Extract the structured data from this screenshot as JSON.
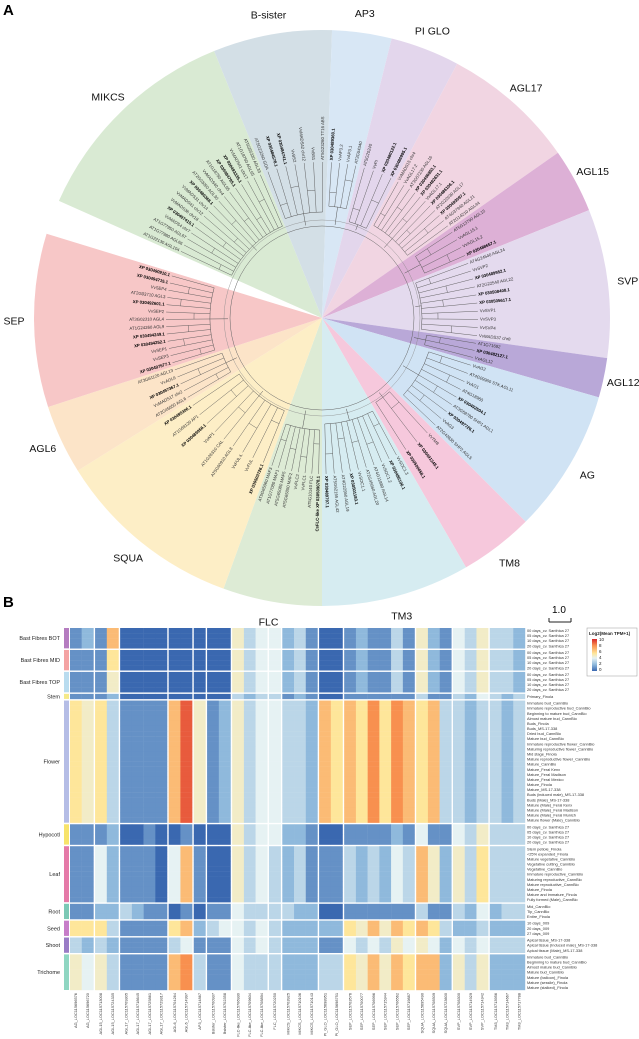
{
  "panel_a": {
    "label": "A",
    "scale_bar_label": "1.0",
    "clades": [
      {
        "name": "MIKCS",
        "color": "#d9ead3",
        "start": -66,
        "end": -22,
        "tips": [
          "AT1G22130 AGL104",
          "AT1G77980 AGL66",
          "AT1G77950 AGL67",
          "VvMADS4 chr7",
          "XP 030497415.1",
          "VvMADS36 chr18",
          "VvMADS41 chr12",
          "VvMADS31 chr14",
          "XP 030480368.1",
          "AT2G03060 AGL30",
          "VvMADS40 chr4",
          "AT1G18750 AGL65",
          "XP 030484795.1",
          "XP 030493335.1",
          "VvMADS41 chr17",
          "AT1G18750 AGL65",
          "AT5G65330 AGL33"
        ]
      },
      {
        "name": "B-sister",
        "color": "#d3dfe6",
        "start": -22,
        "end": 2,
        "tips": [
          "AT5G23260 GOA",
          "XP 030484578.1",
          "XP 030484741.1",
          "VvBS2",
          "VvMADS42 chr12",
          "VvBS1",
          "AT5G23260 TT16 ABS"
        ]
      },
      {
        "name": "AP3",
        "color": "#d8e7f5",
        "start": 2,
        "end": 14,
        "tips": [
          "XP 030489360.1",
          "VvAP3.2",
          "VvAP3.1",
          "AT3G54340"
        ]
      },
      {
        "name": "PI GLO",
        "color": "#e3d6ec",
        "start": 14,
        "end": 28,
        "tips": [
          "AT5G20240",
          "VvPI",
          "XP 030480122.1",
          "XP 030486995.1"
        ]
      },
      {
        "name": "AGL17",
        "color": "#f1d5e2",
        "start": 28,
        "end": 55,
        "tips": [
          "VvMADS15 chr4",
          "VvAGL17.2",
          "AT3G57230 AGL16",
          "XP 030496853.1",
          "XP 030482631.1",
          "VvAGL17.1",
          "XP 030486106.1",
          "AT2G22630 AGL17",
          "XP 030493097.1",
          "AT4G37940 AGL21",
          "AT2G14210 AGL44"
        ]
      },
      {
        "name": "AGL15",
        "color": "#ddb0d6",
        "start": 55,
        "end": 68,
        "tips": [
          "AT5G13790 AGL15",
          "VvAGL15.1",
          "VvAGL15.2",
          "XP 030488657.1"
        ]
      },
      {
        "name": "SVP",
        "color": "#e4daee",
        "start": 68,
        "end": 98,
        "tips": [
          "AT4G24540 AGL24",
          "VvSVP2",
          "XP 030489952.1",
          "AT2G22540 AGL22",
          "XP 030508408.1",
          "XP 030505617.1",
          "VvSVP1",
          "VvSVP3",
          "VvSVP4",
          "VvMADS37 chr8"
        ]
      },
      {
        "name": "AGL12",
        "color": "#b9a8d8",
        "start": 98,
        "end": 106,
        "tips": [
          "AT1G71692",
          "XP 030482127.1",
          "VvAGL12"
        ]
      },
      {
        "name": "AG",
        "color": "#d0e3f4",
        "start": 106,
        "end": 135,
        "tips": [
          "VvAG2",
          "AT4G09960 STK AGL11",
          "VvAG1",
          "AT4G18960",
          "XP 030492504.1",
          "AT3G58780 SHP1 AGL1",
          "XP 030497726.1",
          "VvAG3",
          "AT2G42830 SHP2 AGL5"
        ]
      },
      {
        "name": "TM8",
        "color": "#f6c8dc",
        "start": 135,
        "end": 150,
        "tips": [
          "VvTM8",
          "XP 030491248.1",
          "XP 030500658.1"
        ]
      },
      {
        "name": "TM3",
        "color": "#d6ecf1",
        "start": 150,
        "end": 180,
        "tips": [
          "VvSOC1.3",
          "XP 030486106.1",
          "VvSOC1.2",
          "AT4G11880 AGL14",
          "AT2G45660 AGL20",
          "VvSOC1.1",
          "XP 030501183.1",
          "AT4G22950 AGL19",
          "AT5G62165 AGL42",
          "XP 030489797.1"
        ]
      },
      {
        "name": "FLC",
        "color": "#ddebd5",
        "start": 180,
        "end": 200,
        "tips": [
          "CsFLC-like XP 030509078.1",
          "AT5G10140 FLC",
          "VvFLC1",
          "VvFLC2",
          "AT5G65050 MAF2",
          "AT5G65080 MAF5",
          "AT1G77080 MAF1",
          "AT5G65060 MAF3"
        ]
      },
      {
        "name": "SQUA",
        "color": "#fdeec6",
        "start": 200,
        "end": 238,
        "tips": [
          "XP 030503726.1",
          "VvFUL",
          "VvFUL-L",
          "AT5G60910 AGL8",
          "AT1G26310 CAL",
          "VvAP1",
          "XP 030489956.1",
          "AT1G69120 AP1",
          "XP 030495306.1"
        ]
      },
      {
        "name": "AGL6",
        "color": "#fce4c8",
        "start": 238,
        "end": 252,
        "tips": [
          "AT2G45650 AGL6",
          "VvMADS17 chr2",
          "XP 030497367.1",
          "VvAGL6",
          "AT3G61120 AGL13"
        ]
      },
      {
        "name": "SEP",
        "color": "#f7c7c7",
        "start": 252,
        "end": 287,
        "tips": [
          "XP 030497577.1",
          "VvSEP3",
          "VvSEP1",
          "XP 030494252.1",
          "XP 030494249.1",
          "AT1G24260 AGL9",
          "AT3G02310 AGL4",
          "VvSEP2",
          "XP 030492601.1",
          "AT2G03710 AGL3",
          "VvSEP4",
          "XP 030494715.1",
          "XP 030490910.1"
        ]
      }
    ]
  },
  "panel_b": {
    "label": "B",
    "chart_data": {
      "type": "heatmap",
      "legend_title": "Log2(Mean TPM+1)",
      "legend_ticks": [
        "10",
        "8",
        "6",
        "4",
        "2",
        "0"
      ],
      "value_range": [
        0,
        10
      ],
      "colorscale": [
        "#3a68b0",
        "#8fb9dc",
        "#e6f2f3",
        "#fee69a",
        "#f8904f",
        "#d7262a"
      ],
      "columns": [
        {
          "group": "AG",
          "labels": [
            "AG_LOC115696576",
            "AG_LOC115696720"
          ]
        },
        {
          "group": "AGL15",
          "labels": [
            "AGL15_LOC115713008",
            "AGL15_LOC115724335"
          ]
        },
        {
          "group": "AGL17",
          "labels": [
            "AGL17_LOC115709305",
            "AGL17_LOC115718645",
            "AGL17_LOC115725861",
            "AGL17_LOC115729317"
          ]
        },
        {
          "group": "AGL6",
          "labels": [
            "AGL6_LOC115704264",
            "AGL6_LOC115714997"
          ]
        },
        {
          "group": "AP3",
          "labels": [
            "AP3_LOC115714867"
          ]
        },
        {
          "group": "Bsister",
          "labels": [
            "Bsister_LOC115700937",
            "Bsister_LOC115702358"
          ]
        },
        {
          "group": "FLC-like",
          "labels": [
            "FLC-like_LOC115706930",
            "FLC-like_LOC115709604",
            "FLC-like_LOC115708894"
          ]
        },
        {
          "group": "FLC",
          "labels": [
            "FLC_LOC115720250"
          ]
        },
        {
          "group": "MIKCS",
          "labels": [
            "MIKCS_LOC115703925",
            "MIKCS_LOC115710106",
            "MIKCS_LOC115710143"
          ]
        },
        {
          "group": "PI GLO",
          "labels": [
            "PI_GLO_LOC115698951",
            "PI_GLO_LOC115698751"
          ]
        },
        {
          "group": "SEP",
          "labels": [
            "SEP_LOC115703576",
            "SEP_LOC115700077",
            "SEP_LOC115706996",
            "SEP_LOC115715344",
            "SEP_LOC115706562",
            "SEP_LOC115719887"
          ]
        },
        {
          "group": "SQUA",
          "labels": [
            "SQUA_LOC115695490",
            "SQUA_LOC115708509",
            "SQUA_LOC115723600"
          ]
        },
        {
          "group": "SVP",
          "labels": [
            "SVP_LOC115708300",
            "SVP_LOC115714929",
            "SVP_LOC115714342"
          ]
        },
        {
          "group": "TM3",
          "labels": [
            "TM3_LOC115713956",
            "TM3_LOC115714667",
            "TM3_LOC115717788"
          ]
        }
      ],
      "row_groups": [
        {
          "name": "Bast Fibres BOT",
          "color": "#b57cc0",
          "rows": [
            "00 days_cv. Santhica 27",
            "05 days_cv. Santhica 27",
            "10 days_cv. Santhica 27",
            "20 days_cv. Santhica 27"
          ],
          "values": [
            1,
            2,
            1,
            7,
            0,
            0,
            0,
            0,
            0,
            0,
            0,
            0,
            0,
            5,
            3,
            4,
            4,
            2,
            3,
            1,
            0,
            0,
            1,
            2,
            1,
            1,
            3,
            1,
            5,
            2,
            1,
            4,
            3,
            5,
            3,
            3,
            2
          ]
        },
        {
          "name": "Bast Fibres MID",
          "color": "#f4a3a3",
          "rows": [
            "00 days_cv. Santhica 27",
            "05 days_cv. Santhica 27",
            "10 days_cv. Santhica 27",
            "20 days_cv. Santhica 27"
          ],
          "values": [
            1,
            1,
            1,
            6,
            0,
            0,
            0,
            0,
            0,
            0,
            0,
            0,
            0,
            5,
            3,
            4,
            4,
            2,
            3,
            1,
            0,
            0,
            1,
            2,
            1,
            1,
            3,
            1,
            5,
            2,
            1,
            4,
            3,
            5,
            3,
            3,
            2
          ]
        },
        {
          "name": "Bast Fibres TOP",
          "color": "#b9dcef",
          "rows": [
            "00 days_cv. Santhica 27",
            "05 days_cv. Santhica 27",
            "10 days_cv. Santhica 27",
            "20 days_cv. Santhica 27"
          ],
          "values": [
            1,
            1,
            1,
            5,
            0,
            0,
            0,
            0,
            0,
            0,
            0,
            0,
            0,
            5,
            3,
            4,
            4,
            2,
            3,
            1,
            0,
            0,
            1,
            2,
            1,
            1,
            3,
            1,
            5,
            2,
            1,
            4,
            3,
            5,
            3,
            3,
            2
          ]
        },
        {
          "name": "Stem",
          "color": "#f5ea8a",
          "rows": [
            "Primary_Finola"
          ],
          "values": [
            1,
            1,
            1,
            2,
            0,
            0,
            0,
            0,
            0,
            0,
            0,
            0,
            0,
            3,
            2,
            3,
            3,
            1,
            2,
            1,
            0,
            0,
            1,
            1,
            1,
            1,
            1,
            1,
            3,
            1,
            1,
            3,
            2,
            4,
            3,
            2,
            3
          ]
        },
        {
          "name": "Flower",
          "color": "#b5bde6",
          "rows": [
            "Immature bud_CannBio",
            "Immature reproductive bud_CannBio",
            "Beginning to mature bud_CannBio",
            "Almost mature bud_CannBio",
            "Buds_Finola",
            "Buds_MS-17-338",
            "Dried bud_CannBio",
            "Mature bud_CannBio",
            "Immature reproductive flower_CannBio",
            "Maturing reproductive flower_CannBio",
            "Mid stage_Finola",
            "Mature reproductive flower_CannBio",
            "Mature_CannBio",
            "Mature_Feral Kenx",
            "Mature_Feral Madison",
            "Mature_Feral Mexico",
            "Mature_Finola",
            "Mature_MS-17-338",
            "Buds (induced male)_MS-17-338",
            "Buds (Male)_MS-17-338",
            "Mature (Male)_Feral Kenx",
            "Mature (Male)_Feral Madison",
            "Mature (Male)_Feral Munich",
            "Mature flower (Male)_CannBio"
          ],
          "values": [
            6,
            5,
            6,
            3,
            1,
            1,
            1,
            1,
            7,
            9,
            5,
            1,
            2,
            5,
            3,
            4,
            4,
            3,
            3,
            2,
            7,
            6,
            7,
            6,
            8,
            6,
            8,
            7,
            6,
            7,
            3,
            3,
            2,
            3,
            3,
            2,
            3
          ]
        },
        {
          "name": "Hypocotl",
          "color": "#f7e36b",
          "rows": [
            "00 days_cv. Santhica 27",
            "05 days_cv. Santhica 27",
            "10 days_cv. Santhica 27",
            "20 days_cv. Santhica 27"
          ],
          "values": [
            1,
            1,
            1,
            2,
            0,
            0,
            1,
            0,
            0,
            1,
            0,
            0,
            0,
            5,
            3,
            4,
            4,
            2,
            2,
            1,
            0,
            0,
            1,
            1,
            1,
            1,
            2,
            1,
            4,
            1,
            1,
            4,
            3,
            5,
            3,
            3,
            3
          ]
        },
        {
          "name": "Leaf",
          "color": "#e57aa8",
          "rows": [
            "Stem petiole_Finola",
            "<25% expanded_Finola",
            "Mature vegetative_CannBio",
            "Vegetative cutting_CannBio",
            "Vegetative_CannBio",
            "Immature reproductive_CannBio",
            "Maturing reproductive_CannBio",
            "Mature reproductive_CannBio",
            "Mature_Finola",
            "Mature and immature_Finola",
            "Fully formed (Male)_CannBio"
          ],
          "values": [
            1,
            1,
            4,
            2,
            1,
            1,
            1,
            0,
            4,
            7,
            1,
            0,
            0,
            5,
            3,
            4,
            3,
            2,
            3,
            1,
            1,
            1,
            3,
            2,
            3,
            2,
            4,
            3,
            7,
            5,
            2,
            5,
            3,
            6,
            3,
            3,
            3
          ]
        },
        {
          "name": "Root",
          "color": "#7cc9b5",
          "rows": [
            "Mid_CannBio",
            "Tip_CannBio",
            "Entire_Finola"
          ],
          "values": [
            1,
            1,
            2,
            2,
            3,
            2,
            1,
            1,
            0,
            1,
            0,
            1,
            1,
            4,
            3,
            3,
            3,
            3,
            2,
            2,
            0,
            0,
            1,
            1,
            1,
            1,
            1,
            1,
            3,
            1,
            1,
            3,
            2,
            4,
            2,
            3,
            3
          ]
        },
        {
          "name": "Seed",
          "color": "#c77dc9",
          "rows": [
            "10 days_009",
            "20 days_009",
            "27 days_009"
          ],
          "values": [
            6,
            6,
            6,
            3,
            1,
            1,
            1,
            1,
            6,
            7,
            2,
            3,
            4,
            4,
            3,
            4,
            3,
            2,
            2,
            2,
            2,
            2,
            6,
            5,
            7,
            5,
            7,
            6,
            7,
            6,
            3,
            2,
            2,
            3,
            2,
            2,
            2
          ]
        },
        {
          "name": "Shoot",
          "color": "#9a7cc6",
          "rows": [
            "Apical tissue_MS-17-338",
            "Apical tissue (Induced male)_MS-17-338",
            "Apical tissue (Male)_MS-17-338"
          ],
          "values": [
            3,
            2,
            3,
            2,
            1,
            1,
            1,
            1,
            3,
            4,
            1,
            1,
            1,
            4,
            3,
            4,
            3,
            2,
            2,
            2,
            1,
            1,
            4,
            3,
            4,
            3,
            5,
            4,
            5,
            4,
            2,
            4,
            3,
            4,
            3,
            3,
            3
          ]
        },
        {
          "name": "Trichome",
          "color": "#8fd6c2",
          "rows": [
            "Immature bud_CannBio",
            "Beginning to mature bud_CannBio",
            "Almost mature bud_CannBio",
            "Mature bud_CannBio",
            "Mature (balloon)_Finola",
            "Mature (sessile)_Finola",
            "Mature (stalked)_Finola"
          ],
          "values": [
            5,
            4,
            5,
            3,
            1,
            1,
            1,
            1,
            7,
            8,
            3,
            1,
            1,
            4,
            3,
            3,
            3,
            2,
            2,
            2,
            3,
            3,
            6,
            5,
            7,
            5,
            7,
            6,
            7,
            7,
            2,
            5,
            3,
            5,
            2,
            2,
            2
          ]
        }
      ]
    }
  }
}
